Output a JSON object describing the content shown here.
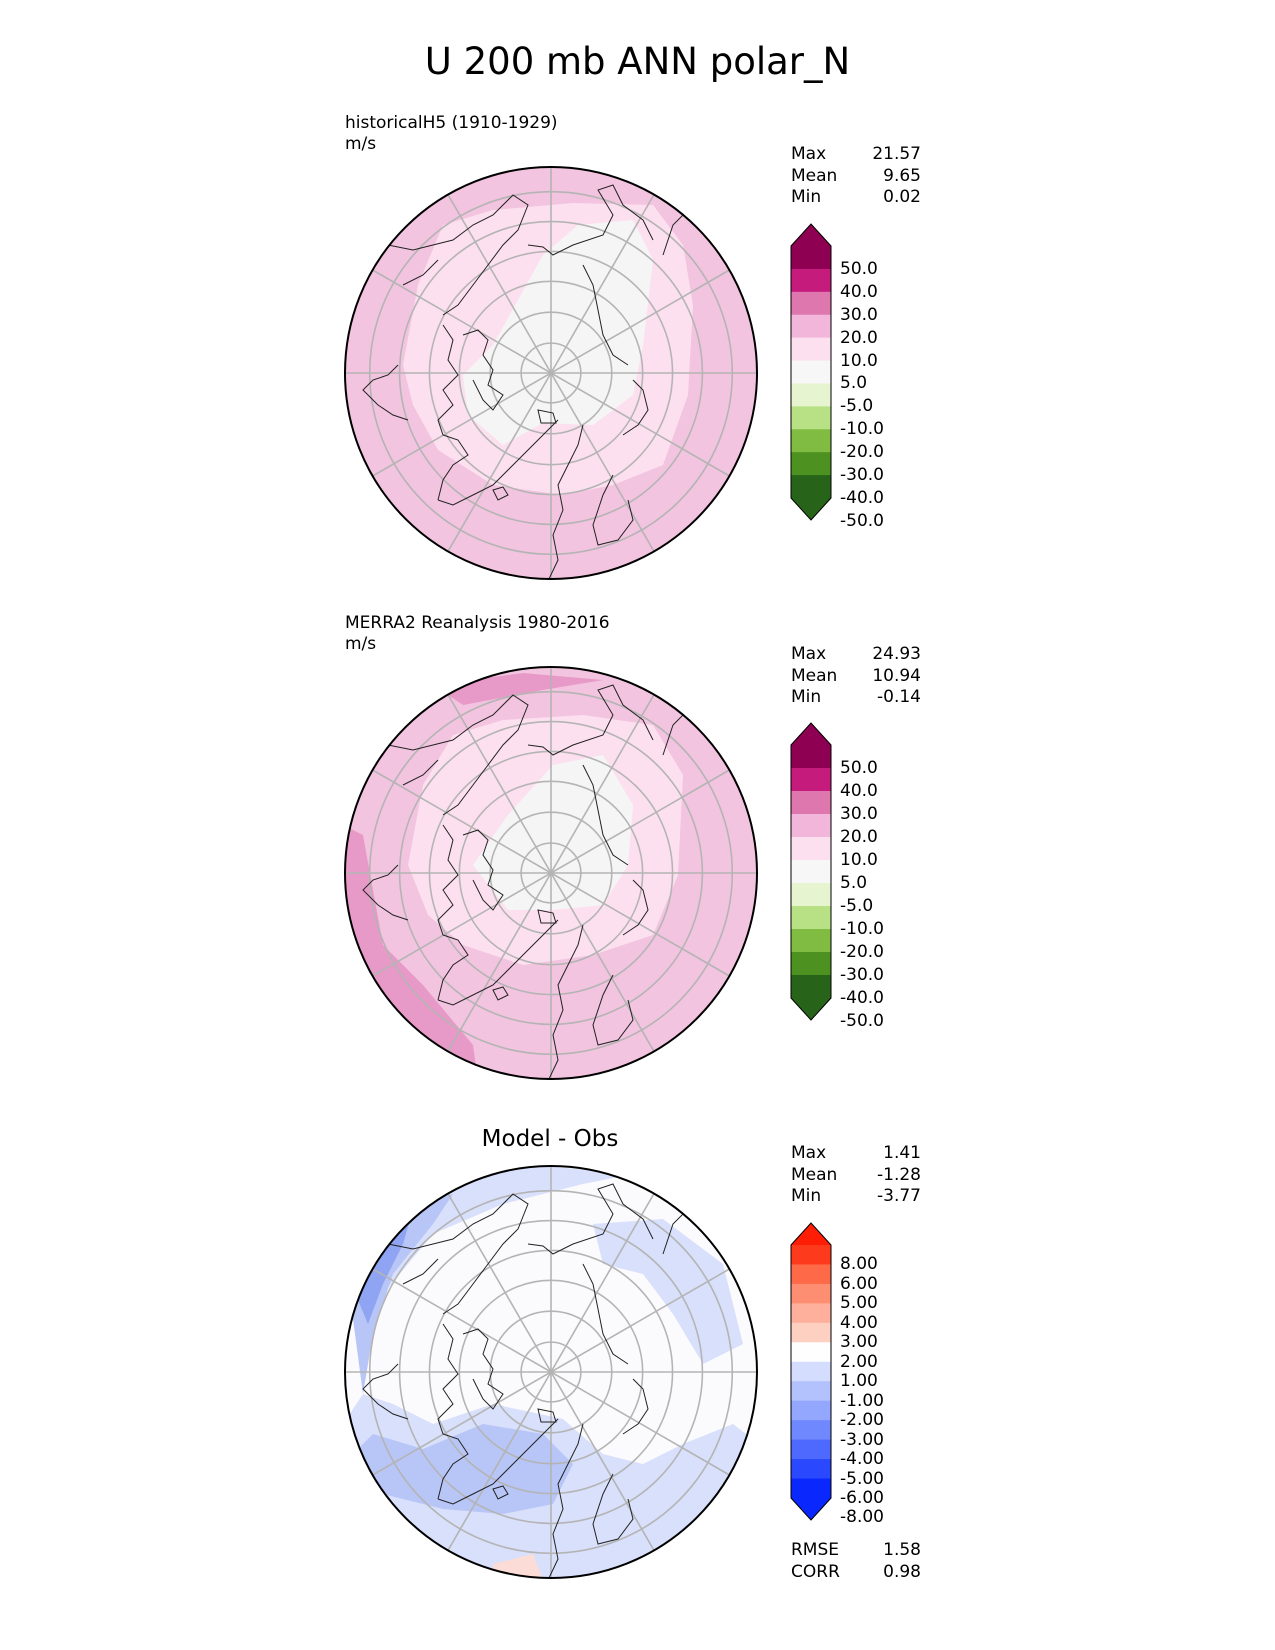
{
  "title": "U 200 mb ANN polar_N",
  "panels": [
    {
      "id": "test",
      "label_lines": [
        "historicalH5 (1910-1929)",
        "m/s"
      ],
      "stats": [
        {
          "label": "Max",
          "value": "21.57"
        },
        {
          "label": "Mean",
          "value": "9.65"
        },
        {
          "label": "Min",
          "value": "0.02"
        }
      ],
      "colorbar": {
        "labels": [
          "50.0",
          "40.0",
          "30.0",
          "20.0",
          "10.0",
          "5.0",
          "-5.0",
          "-10.0",
          "-20.0",
          "-30.0",
          "-40.0",
          "-50.0"
        ],
        "colors": [
          "#8e0152",
          "#c51b7d",
          "#de77ae",
          "#f1b6da",
          "#fde0ef",
          "#f7f7f7",
          "#e6f5d0",
          "#b8e186",
          "#7fbc41",
          "#4d9221",
          "#276419"
        ],
        "over_color": "#8e0152",
        "under_color": "#276419"
      }
    },
    {
      "id": "ref",
      "label_lines": [
        "MERRA2 Reanalysis 1980-2016",
        "m/s"
      ],
      "stats": [
        {
          "label": "Max",
          "value": "24.93"
        },
        {
          "label": "Mean",
          "value": "10.94"
        },
        {
          "label": "Min",
          "value": "-0.14"
        }
      ],
      "colorbar": {
        "labels": [
          "50.0",
          "40.0",
          "30.0",
          "20.0",
          "10.0",
          "5.0",
          "-5.0",
          "-10.0",
          "-20.0",
          "-30.0",
          "-40.0",
          "-50.0"
        ],
        "colors": [
          "#8e0152",
          "#c51b7d",
          "#de77ae",
          "#f1b6da",
          "#fde0ef",
          "#f7f7f7",
          "#e6f5d0",
          "#b8e186",
          "#7fbc41",
          "#4d9221",
          "#276419"
        ],
        "over_color": "#8e0152",
        "under_color": "#276419"
      }
    },
    {
      "id": "diff",
      "center_title": "Model - Obs",
      "stats": [
        {
          "label": "Max",
          "value": "1.41"
        },
        {
          "label": "Mean",
          "value": "-1.28"
        },
        {
          "label": "Min",
          "value": "-3.77"
        }
      ],
      "bottom_stats": [
        {
          "label": "RMSE",
          "value": "1.58"
        },
        {
          "label": "CORR",
          "value": "0.98"
        }
      ],
      "colorbar": {
        "labels": [
          "8.00",
          "6.00",
          "5.00",
          "4.00",
          "3.00",
          "2.00",
          "1.00",
          "-1.00",
          "-2.00",
          "-3.00",
          "-4.00",
          "-5.00",
          "-6.00",
          "-8.00"
        ],
        "colors": [
          "#fe3a1c",
          "#fe6a48",
          "#fe8e72",
          "#feb09c",
          "#fdd0c2",
          "#fefefe",
          "#d4ddfd",
          "#b3c2fd",
          "#92a7fd",
          "#7088fd",
          "#4e69fd",
          "#2a48fe",
          "#0a28fe"
        ],
        "over_color": "#fe1e06",
        "under_color": "#0a28fe"
      }
    }
  ],
  "colors": {
    "test_base": "#f2c4df",
    "test_inner": "#fde0ef",
    "test_core": "#f5f5f5",
    "ref_base": "#f2c4df",
    "ref_edge": "#e79ac7",
    "diff_base": "#fbfbfe",
    "diff_light": "#d8e0fb",
    "diff_mid": "#b8c5f7",
    "diff_strong": "#8fa4f2",
    "diff_pos": "#fcdcd6"
  }
}
